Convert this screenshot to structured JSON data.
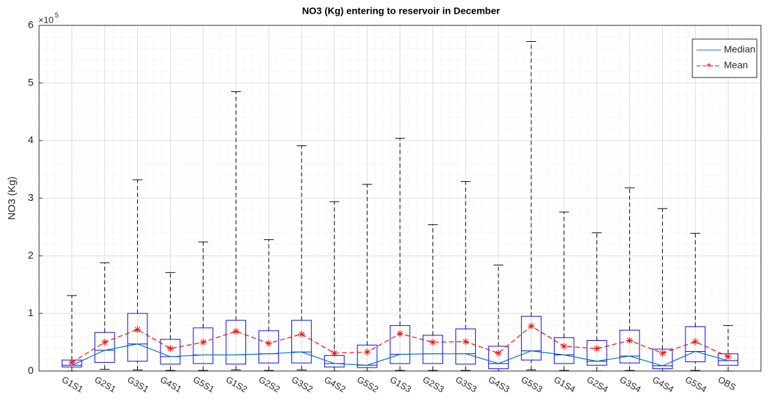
{
  "chart_data": {
    "type": "box",
    "title": "NO3 (Kg) entering to reservoir in December",
    "y_label": "NO3 (Kg)",
    "y_multiplier": {
      "base": "×10",
      "exponent": "5"
    },
    "categories": [
      "G1S1",
      "G2S1",
      "G3S1",
      "G4S1",
      "G5S1",
      "G1S2",
      "G2S2",
      "G3S2",
      "G4S2",
      "G5S2",
      "G1S3",
      "G2S3",
      "G3S3",
      "G4S3",
      "G5S3",
      "G1S4",
      "G2S4",
      "G3S4",
      "G4S4",
      "G5S4",
      "OBS"
    ],
    "whisker_low": [
      0,
      0.03,
      0.02,
      0.01,
      0.01,
      0.02,
      0.01,
      0.02,
      0,
      0,
      0.01,
      0.01,
      0.01,
      0,
      0.02,
      0.01,
      0,
      0.01,
      0,
      0.01,
      0
    ],
    "q1": [
      0.07,
      0.15,
      0.17,
      0.12,
      0.13,
      0.12,
      0.14,
      0.14,
      0.07,
      0.06,
      0.13,
      0.13,
      0.12,
      0.04,
      0.19,
      0.13,
      0.1,
      0.14,
      0.04,
      0.16,
      0.1
    ],
    "median": [
      0.1,
      0.36,
      0.47,
      0.25,
      0.28,
      0.28,
      0.3,
      0.33,
      0.13,
      0.1,
      0.29,
      0.3,
      0.3,
      0.13,
      0.35,
      0.28,
      0.17,
      0.26,
      0.09,
      0.34,
      0.18
    ],
    "q3": [
      0.19,
      0.67,
      1.0,
      0.55,
      0.75,
      0.88,
      0.7,
      0.88,
      0.27,
      0.45,
      0.79,
      0.62,
      0.73,
      0.43,
      0.95,
      0.58,
      0.53,
      0.71,
      0.38,
      0.77,
      0.3
    ],
    "whisker_high": [
      1.31,
      1.88,
      3.32,
      1.71,
      2.24,
      4.85,
      2.28,
      3.91,
      2.94,
      3.24,
      4.04,
      2.54,
      3.29,
      1.84,
      5.72,
      2.76,
      2.4,
      3.18,
      2.82,
      2.39,
      0.79
    ],
    "mean": [
      0.15,
      0.5,
      0.72,
      0.39,
      0.5,
      0.69,
      0.48,
      0.64,
      0.31,
      0.33,
      0.65,
      0.5,
      0.51,
      0.31,
      0.78,
      0.43,
      0.39,
      0.53,
      0.31,
      0.51,
      0.25
    ],
    "box_color": "#0000ff",
    "series": [
      {
        "name": "Median",
        "color": "#0072bd"
      },
      {
        "name": "Mean",
        "color": "#ff0000"
      }
    ],
    "ylim": [
      0,
      6
    ],
    "yticks": [
      0,
      1,
      2,
      3,
      4,
      5,
      6
    ],
    "grid": true,
    "minor_grid": true,
    "legend": "top-right"
  }
}
